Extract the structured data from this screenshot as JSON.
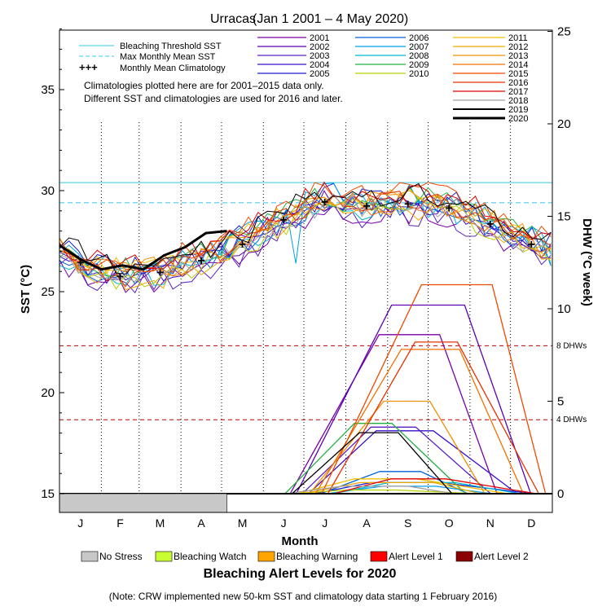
{
  "chart_data": {
    "type": "line",
    "title_site": "Urracas",
    "title_range": "(Jan 1 2001 – 4 May 2020)",
    "xlabel": "Month",
    "ylabel_left": "SST (°C)",
    "ylabel_right": "DHW (°C week)",
    "ylim_sst": [
      15,
      38
    ],
    "ylim_dhw": [
      0,
      25
    ],
    "months": [
      "J",
      "F",
      "M",
      "A",
      "M",
      "J",
      "J",
      "A",
      "S",
      "O",
      "N",
      "D"
    ],
    "sst_ticks": [
      15,
      20,
      25,
      30,
      35
    ],
    "dhw_ticks": [
      0,
      5,
      10,
      15,
      20,
      25
    ],
    "bleaching_threshold_sst": 30.4,
    "max_monthly_mean_sst": 29.4,
    "threshold_labels": {
      "dhw8": "8 DHWs",
      "dhw4": "4 DHWs",
      "dhw8_value": 8,
      "dhw4_value": 4
    },
    "climatology_note": [
      "Climatologies plotted here are for 2001–2015 data only.",
      "Different SST and climatologies are used for 2016 and later."
    ],
    "reference_legend": [
      "Bleaching Threshold SST",
      "Max Monthly Mean SST",
      "Monthly Mean Climatology"
    ],
    "monthly_mean_climatology": [
      26.4,
      25.7,
      25.9,
      26.5,
      27.3,
      28.5,
      29.4,
      29.2,
      29.3,
      29.1,
      28.3,
      27.3
    ],
    "years": [
      {
        "name": "2001",
        "color": "#7a00a8",
        "peak_dhw": 8.6
      },
      {
        "name": "2002",
        "color": "#5c00b0",
        "peak_dhw": 10.2
      },
      {
        "name": "2003",
        "color": "#5a20c0",
        "peak_dhw": 3.6
      },
      {
        "name": "2004",
        "color": "#3a10c8",
        "peak_dhw": 3.4
      },
      {
        "name": "2005",
        "color": "#1a20d0",
        "peak_dhw": 0.6
      },
      {
        "name": "2006",
        "color": "#0060e0",
        "peak_dhw": 1.2
      },
      {
        "name": "2007",
        "color": "#00a0e8",
        "peak_dhw": 0.4
      },
      {
        "name": "2008",
        "color": "#00b8d0",
        "peak_dhw": 0.6
      },
      {
        "name": "2009",
        "color": "#20b040",
        "peak_dhw": 3.8
      },
      {
        "name": "2010",
        "color": "#b8d000",
        "peak_dhw": 0.2
      },
      {
        "name": "2011",
        "color": "#f0c000",
        "peak_dhw": 0.8
      },
      {
        "name": "2012",
        "color": "#f0a800",
        "peak_dhw": 0.6
      },
      {
        "name": "2013",
        "color": "#f09000",
        "peak_dhw": 5.0
      },
      {
        "name": "2014",
        "color": "#f07000",
        "peak_dhw": 7.8
      },
      {
        "name": "2015",
        "color": "#f04800",
        "peak_dhw": 11.3
      },
      {
        "name": "2016",
        "color": "#e83000",
        "peak_dhw": 8.2
      },
      {
        "name": "2017",
        "color": "#e00000",
        "peak_dhw": 0.8
      },
      {
        "name": "2018",
        "color": "#a0a0a0",
        "peak_dhw": 0.4
      },
      {
        "name": "2019",
        "color": "#000000",
        "peak_dhw": 3.3
      },
      {
        "name": "2020",
        "color": "#000000",
        "peak_dhw": 0
      }
    ],
    "year_2020_sst": [
      27.3,
      26.6,
      26.1,
      26.3,
      26.1,
      26.8,
      27.2,
      27.9,
      28.0
    ],
    "alert_levels_title": "Bleaching Alert Levels for 2020",
    "alert_levels": [
      {
        "label": "No Stress",
        "color": "#c8c8c8"
      },
      {
        "label": "Bleaching Watch",
        "color": "#c8ff32"
      },
      {
        "label": "Bleaching Warning",
        "color": "#ffa500"
      },
      {
        "label": "Alert Level 1",
        "color": "#ff0000"
      },
      {
        "label": "Alert Level 2",
        "color": "#8b0000"
      }
    ],
    "alert_bar_2020": "No Stress (Jan 1 – May 4)",
    "note": "(Note: CRW implemented new 50-km SST and climatology data starting 1 February 2016)"
  }
}
